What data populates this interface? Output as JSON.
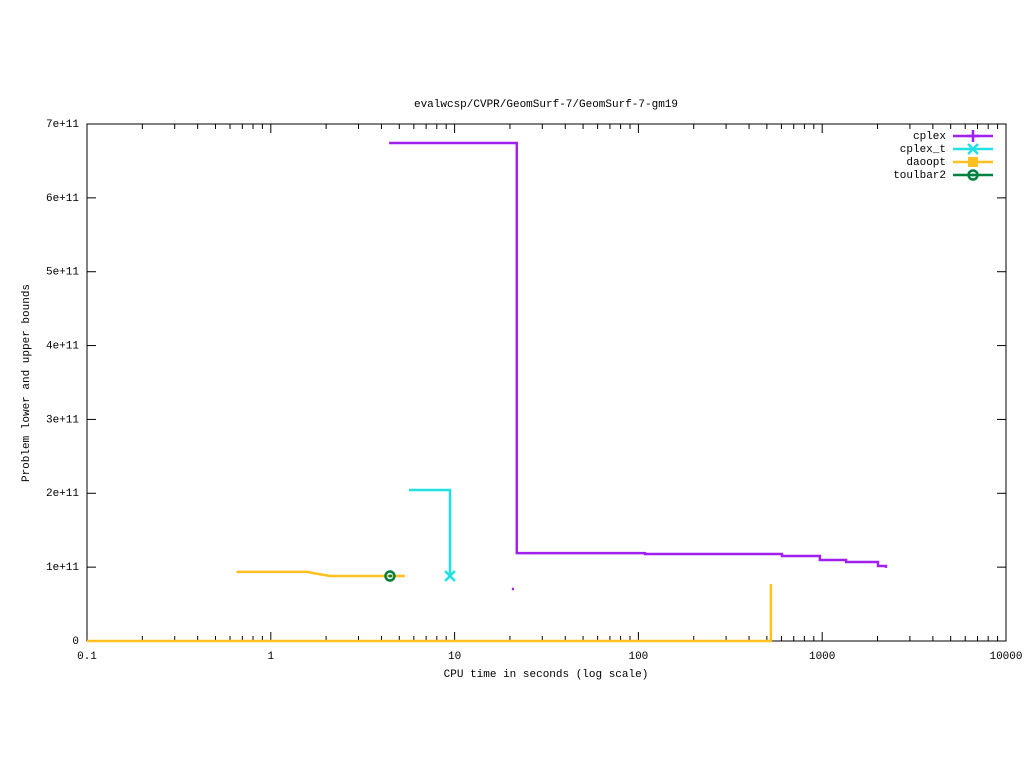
{
  "chart_data": {
    "type": "line",
    "title": "evalwcsp/CVPR/GeomSurf-7/GeomSurf-7-gm19",
    "xlabel": "CPU time in seconds (log scale)",
    "ylabel": "Problem lower and upper bounds",
    "xscale": "log",
    "xlim": [
      0.1,
      10000
    ],
    "xticks": [
      0.1,
      1,
      10,
      100,
      1000,
      10000
    ],
    "ylim": [
      0,
      700000000000.0
    ],
    "yticks": [
      0,
      {
        "value": 100000000000.0,
        "label": "1e+11"
      },
      {
        "value": 200000000000.0,
        "label": "2e+11"
      },
      {
        "value": 300000000000.0,
        "label": "3e+11"
      },
      {
        "value": 400000000000.0,
        "label": "4e+11"
      },
      {
        "value": 500000000000.0,
        "label": "5e+11"
      },
      {
        "value": 600000000000.0,
        "label": "6e+11"
      },
      {
        "value": 700000000000.0,
        "label": "7e+11"
      }
    ],
    "legend": "top-right",
    "series": [
      {
        "name": "cplex",
        "color": "#a020f0",
        "marker": "plus",
        "end_marker": false,
        "x": [
          20.5,
          null,
          4.4,
          21.8,
          21.8,
          108.6,
          108.6,
          604,
          604,
          972,
          972,
          1349,
          1349,
          2013,
          2013,
          2224,
          2224
        ],
        "values": [
          70400000000.0,
          null,
          674300000000.0,
          674300000000.0,
          119000000000.0,
          119000000000.0,
          117800000000.0,
          117800000000.0,
          115100000000.0,
          115100000000.0,
          109700000000.0,
          109700000000.0,
          107000000000.0,
          107000000000.0,
          101500000000.0,
          101500000000.0,
          99000000000.0
        ]
      },
      {
        "name": "cplex_t",
        "color": "#20e0e0",
        "marker": "x",
        "end_marker": true,
        "x": [
          5.65,
          9.44,
          9.44
        ],
        "values": [
          204400000000.0,
          204400000000.0,
          88000000000.0
        ]
      },
      {
        "name": "daoopt",
        "color": "#ffc020",
        "marker": "square",
        "end_marker": false,
        "x": [
          0.655,
          0.66,
          1.59,
          1.7,
          2.1,
          5.37,
          null,
          0.1,
          526,
          526
        ],
        "values": [
          94800000000.0,
          93500000000.0,
          93500000000.0,
          92000000000.0,
          88000000000.0,
          88000000000.0,
          null,
          0,
          0,
          77200000000.0
        ]
      },
      {
        "name": "toulbar2",
        "color": "#008040",
        "marker": "circle",
        "end_marker": true,
        "x": [
          4.45
        ],
        "values": [
          88000000000.0
        ]
      }
    ]
  }
}
